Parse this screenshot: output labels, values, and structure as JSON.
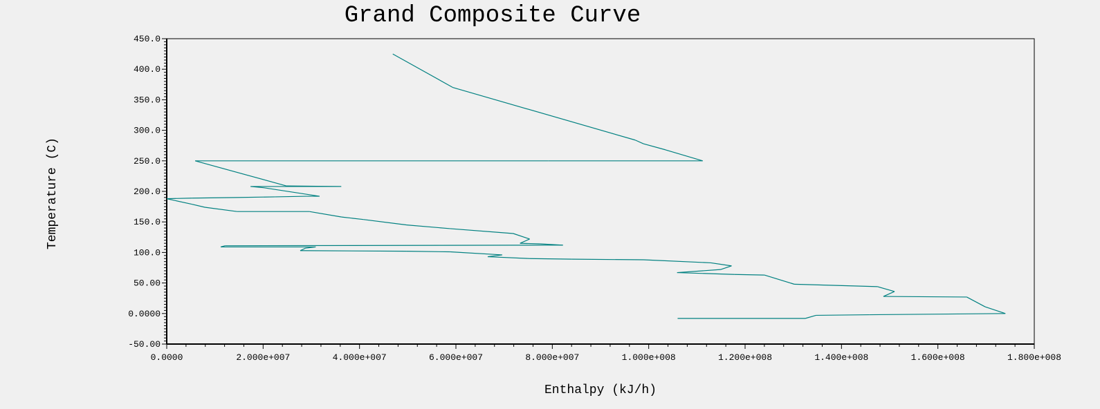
{
  "chart_data": {
    "type": "line",
    "title": "Grand Composite Curve",
    "xlabel": "Enthalpy (kJ/h)",
    "ylabel": "Temperature (C)",
    "xlim": [
      0,
      180000000
    ],
    "ylim": [
      -50,
      450
    ],
    "grid": false,
    "x_tick_values": [
      0,
      20000000,
      40000000,
      60000000,
      80000000,
      100000000,
      120000000,
      140000000,
      160000000,
      180000000
    ],
    "x_tick_labels": [
      "0.0000",
      "2.000e+007",
      "4.000e+007",
      "6.000e+007",
      "8.000e+007",
      "1.000e+008",
      "1.200e+008",
      "1.400e+008",
      "1.600e+008",
      "1.800e+008"
    ],
    "y_tick_values": [
      450,
      400,
      350,
      300,
      250,
      200,
      150,
      100,
      50,
      0,
      -50
    ],
    "y_tick_labels": [
      "450.0",
      "400.0",
      "350.0",
      "300.0",
      "250.0",
      "200.0",
      "150.0",
      "100.0",
      "50.00",
      "0.0000",
      "-50.00"
    ],
    "series": [
      {
        "name": "Grand Composite Curve",
        "color": "#008080",
        "x_unit_scale": 1000000,
        "points": [
          [
            46.9,
            425
          ],
          [
            59.4,
            370
          ],
          [
            97.2,
            284
          ],
          [
            98.9,
            278
          ],
          [
            103.5,
            268
          ],
          [
            111.2,
            250
          ],
          [
            79.2,
            250
          ],
          [
            5.9,
            250
          ],
          [
            24.8,
            209
          ],
          [
            36.2,
            208
          ],
          [
            17.4,
            208
          ],
          [
            20.1,
            206
          ],
          [
            31.7,
            192
          ],
          [
            29.0,
            192
          ],
          [
            22.5,
            191
          ],
          [
            14.5,
            190
          ],
          [
            5.2,
            189
          ],
          [
            0.0,
            188
          ],
          [
            5.2,
            179
          ],
          [
            7.9,
            174
          ],
          [
            14.6,
            167
          ],
          [
            29.6,
            167
          ],
          [
            36.3,
            158
          ],
          [
            40.8,
            154
          ],
          [
            49.8,
            145
          ],
          [
            58.8,
            139
          ],
          [
            71.9,
            131
          ],
          [
            75.3,
            122
          ],
          [
            73.3,
            115
          ],
          [
            77.5,
            114
          ],
          [
            82.2,
            112
          ],
          [
            12.1,
            111
          ],
          [
            11.2,
            109
          ],
          [
            30.9,
            109
          ],
          [
            28.8,
            107
          ],
          [
            27.7,
            103
          ],
          [
            49.8,
            102
          ],
          [
            58.8,
            101
          ],
          [
            69.6,
            96
          ],
          [
            66.6,
            93
          ],
          [
            75.3,
            90
          ],
          [
            84.1,
            89
          ],
          [
            98.9,
            88
          ],
          [
            112.9,
            83
          ],
          [
            117.2,
            78
          ],
          [
            114.9,
            72
          ],
          [
            105.9,
            67
          ],
          [
            117.8,
            64
          ],
          [
            124.0,
            63
          ],
          [
            130.2,
            48
          ],
          [
            147.5,
            44
          ],
          [
            151.0,
            36
          ],
          [
            148.7,
            28
          ],
          [
            166.0,
            27
          ],
          [
            169.8,
            11
          ],
          [
            174.0,
            0
          ],
          [
            145.8,
            -2
          ],
          [
            134.7,
            -3
          ],
          [
            132.5,
            -8
          ],
          [
            106.0,
            -8
          ]
        ]
      }
    ]
  }
}
